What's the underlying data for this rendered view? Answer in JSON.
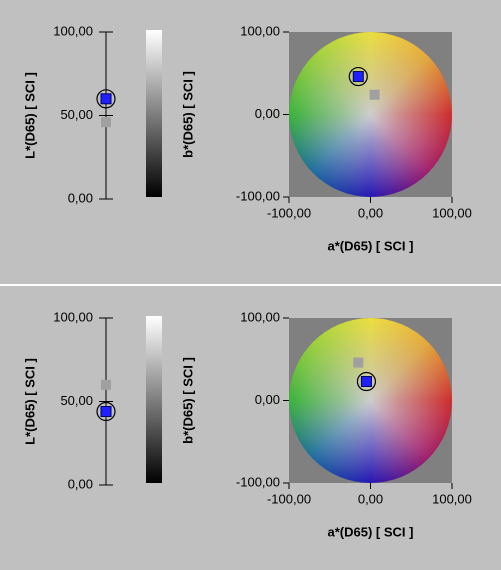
{
  "chart_data": [
    {
      "type": "strip",
      "ylabel": "L*(D65) [ SCI ]",
      "ylim": [
        0,
        100
      ],
      "yticks": [
        {
          "value": 0,
          "label": "0,00"
        },
        {
          "value": 50,
          "label": "50,00"
        },
        {
          "value": 100,
          "label": "100,00"
        }
      ],
      "values": [
        60,
        46
      ],
      "colors": [
        "#2020ff",
        "#a0a0a0"
      ],
      "selected": 0
    },
    {
      "type": "scatter",
      "xlabel": "a*(D65) [ SCI ]",
      "ylabel": "b*(D65) [ SCI ]",
      "xlim": [
        -100,
        100
      ],
      "ylim": [
        -100,
        100
      ],
      "xticks": [
        {
          "value": -100,
          "label": "-100,00"
        },
        {
          "value": 0,
          "label": "0,00"
        },
        {
          "value": 100,
          "label": "100,00"
        }
      ],
      "yticks": [
        {
          "value": -100,
          "label": "-100,00"
        },
        {
          "value": 0,
          "label": "0,00"
        },
        {
          "value": 100,
          "label": "100,00"
        }
      ],
      "x": [
        -15,
        5
      ],
      "y": [
        46,
        24
      ],
      "colors": [
        "#2020ff",
        "#a0a0a0"
      ],
      "selected": 0
    },
    {
      "type": "strip",
      "ylabel": "L*(D65) [ SCI ]",
      "ylim": [
        0,
        100
      ],
      "yticks": [
        {
          "value": 0,
          "label": "0,00"
        },
        {
          "value": 50,
          "label": "50,00"
        },
        {
          "value": 100,
          "label": "100,00"
        }
      ],
      "values": [
        60,
        44
      ],
      "colors": [
        "#a0a0a0",
        "#2020ff"
      ],
      "selected": 1
    },
    {
      "type": "scatter",
      "xlabel": "a*(D65) [ SCI ]",
      "ylabel": "b*(D65) [ SCI ]",
      "xlim": [
        -100,
        100
      ],
      "ylim": [
        -100,
        100
      ],
      "xticks": [
        {
          "value": -100,
          "label": "-100,00"
        },
        {
          "value": 0,
          "label": "0,00"
        },
        {
          "value": 100,
          "label": "100,00"
        }
      ],
      "yticks": [
        {
          "value": -100,
          "label": "-100,00"
        },
        {
          "value": 0,
          "label": "0,00"
        },
        {
          "value": 100,
          "label": "100,00"
        }
      ],
      "x": [
        -15,
        -5
      ],
      "y": [
        46,
        23
      ],
      "colors": [
        "#a0a0a0",
        "#2020ff"
      ],
      "selected": 1
    }
  ]
}
